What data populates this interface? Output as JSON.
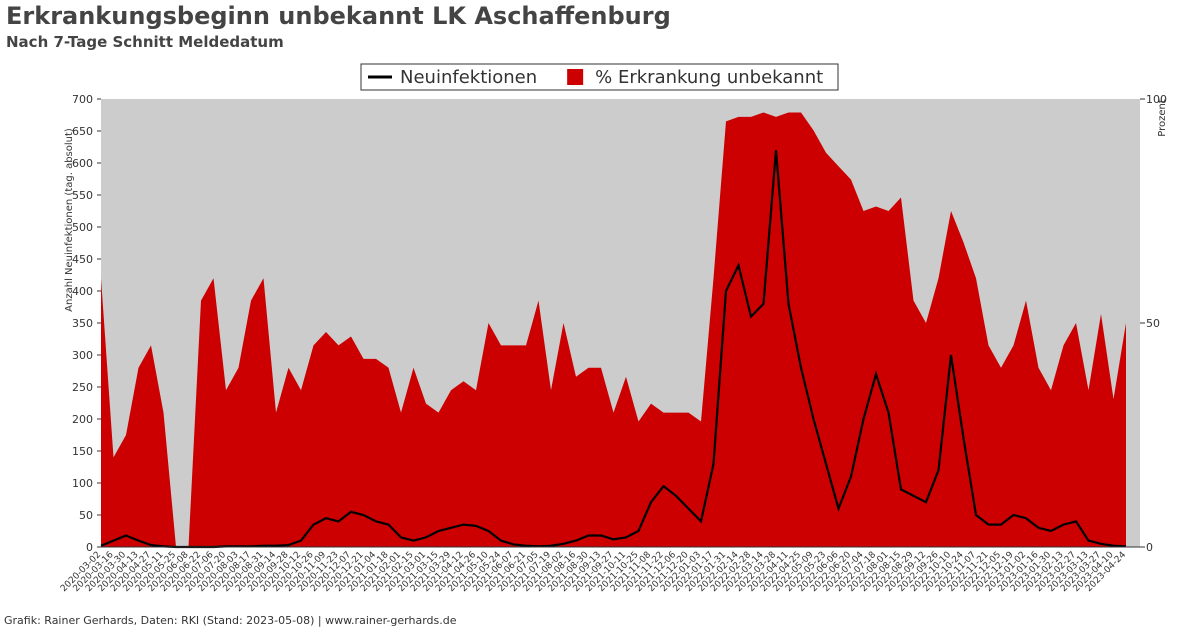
{
  "chart_data": {
    "type": "line",
    "title": "Erkrankungsbeginn unbekannt LK Aschaffenburg",
    "subtitle": "Nach 7-Tage Schnitt Meldedatum",
    "y_label": "Anzahl Neuinfektionen (tag. absolut)",
    "y2_label": "Prozent",
    "footer": "Grafik: Rainer Gerhards, Daten: RKI (Stand: 2023-05-08) | www.rainer-gerhards.de",
    "x": [
      "2020-03-02",
      "2020-03-16",
      "2020-03-30",
      "2020-04-13",
      "2020-04-27",
      "2020-05-11",
      "2020-05-25",
      "2020-06-08",
      "2020-06-22",
      "2020-07-06",
      "2020-07-20",
      "2020-08-03",
      "2020-08-17",
      "2020-08-31",
      "2020-09-14",
      "2020-09-28",
      "2020-10-12",
      "2020-10-26",
      "2020-11-09",
      "2020-11-23",
      "2020-12-07",
      "2020-12-21",
      "2021-01-04",
      "2021-01-18",
      "2021-02-01",
      "2021-02-15",
      "2021-03-01",
      "2021-03-15",
      "2021-03-29",
      "2021-04-12",
      "2021-04-26",
      "2021-05-10",
      "2021-05-24",
      "2021-06-07",
      "2021-06-21",
      "2021-07-05",
      "2021-07-19",
      "2021-08-02",
      "2021-08-16",
      "2021-08-30",
      "2021-09-13",
      "2021-09-27",
      "2021-10-11",
      "2021-10-25",
      "2021-11-08",
      "2021-11-22",
      "2021-12-06",
      "2021-12-20",
      "2022-01-03",
      "2022-01-17",
      "2022-01-31",
      "2022-02-14",
      "2022-02-28",
      "2022-03-14",
      "2022-03-28",
      "2022-04-11",
      "2022-04-25",
      "2022-05-09",
      "2022-05-23",
      "2022-06-06",
      "2022-06-20",
      "2022-07-04",
      "2022-07-18",
      "2022-08-01",
      "2022-08-15",
      "2022-08-29",
      "2022-09-12",
      "2022-09-26",
      "2022-10-10",
      "2022-10-24",
      "2022-11-07",
      "2022-11-21",
      "2022-12-05",
      "2022-12-19",
      "2023-01-02",
      "2023-01-16",
      "2023-01-30",
      "2023-02-13",
      "2023-02-27",
      "2023-03-13",
      "2023-03-27",
      "2023-04-10",
      "2023-04-24"
    ],
    "series": [
      {
        "name": "% Erkrankung unbekannt",
        "color": "#cc0000",
        "kind": "area",
        "axis": "y2",
        "values": [
          60,
          20,
          25,
          40,
          45,
          30,
          0,
          0,
          55,
          60,
          35,
          40,
          55,
          60,
          30,
          40,
          35,
          45,
          48,
          45,
          47,
          42,
          42,
          40,
          30,
          40,
          32,
          30,
          35,
          37,
          35,
          50,
          45,
          45,
          45,
          55,
          35,
          50,
          38,
          40,
          40,
          30,
          38,
          28,
          32,
          30,
          30,
          30,
          28,
          60,
          95,
          96,
          96,
          97,
          96,
          97,
          97,
          93,
          88,
          85,
          82,
          75,
          76,
          75,
          78,
          55,
          50,
          60,
          75,
          68,
          60,
          45,
          40,
          45,
          55,
          40,
          35,
          45,
          50,
          35,
          52,
          33,
          50
        ]
      },
      {
        "name": "Neuinfektionen",
        "color": "#000000",
        "kind": "line",
        "axis": "y",
        "values": [
          2,
          10,
          18,
          10,
          3,
          1,
          0,
          0,
          0,
          0,
          1,
          1,
          1,
          2,
          2,
          3,
          10,
          35,
          45,
          40,
          55,
          50,
          40,
          35,
          15,
          10,
          15,
          25,
          30,
          35,
          33,
          25,
          10,
          4,
          2,
          1,
          2,
          5,
          10,
          18,
          18,
          12,
          15,
          25,
          70,
          95,
          80,
          60,
          40,
          130,
          400,
          440,
          360,
          380,
          620,
          380,
          280,
          200,
          130,
          60,
          110,
          200,
          270,
          210,
          90,
          80,
          70,
          120,
          300,
          170,
          50,
          35,
          35,
          50,
          45,
          30,
          25,
          35,
          40,
          10,
          5,
          2,
          1
        ]
      }
    ],
    "ylim": [
      0,
      700
    ],
    "yticks": [
      0,
      50,
      100,
      150,
      200,
      250,
      300,
      350,
      400,
      450,
      500,
      550,
      600,
      650,
      700
    ],
    "y2lim": [
      0,
      100
    ],
    "y2ticks": [
      0,
      50,
      100
    ],
    "background": "#cccccc",
    "legend": "top"
  }
}
